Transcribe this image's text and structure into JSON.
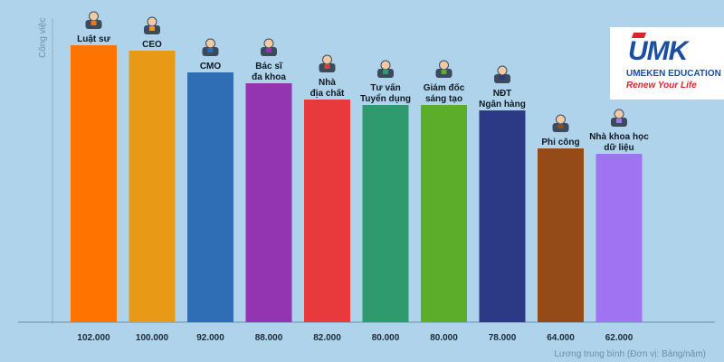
{
  "chart_data": {
    "type": "bar",
    "ylabel": "Công việc",
    "xlabel": "Lương trung bình (Đơn vị: Bảng/năm)",
    "ylim": [
      0,
      110000
    ],
    "grid": false,
    "categories": [
      [
        "Luật sư"
      ],
      [
        "CEO"
      ],
      [
        "CMO"
      ],
      [
        "Bác sĩ",
        "đa khoa"
      ],
      [
        "Nhà",
        "địa chất"
      ],
      [
        "Tư vấn",
        "Tuyển dụng"
      ],
      [
        "Giám đốc",
        "sáng tạo"
      ],
      [
        "NĐT",
        "Ngân hàng"
      ],
      [
        "Phi công"
      ],
      [
        "Nhà khoa học",
        "dữ liệu"
      ]
    ],
    "values": [
      102000,
      100000,
      92000,
      88000,
      82000,
      80000,
      80000,
      78000,
      64000,
      62000
    ],
    "value_labels": [
      "102.000",
      "100.000",
      "92.000",
      "88.000",
      "82.000",
      "80.000",
      "80.000",
      "78.000",
      "64.000",
      "62.000"
    ],
    "colors": [
      "#ff7300",
      "#e89a16",
      "#2f6db5",
      "#9334b0",
      "#e8393d",
      "#2f9a6e",
      "#5cae2a",
      "#2c3a86",
      "#954b18",
      "#a073f2"
    ],
    "icons": [
      "gavel-hand-icon",
      "businessman-icon",
      "marketing-team-icon",
      "doctor-icon",
      "geologist-icon",
      "recruitment-team-icon",
      "creative-director-icon",
      "bank-icon",
      "pilot-icon",
      "data-scientist-icon"
    ]
  },
  "logo": {
    "mark_u": "U",
    "mark_mk": "MK",
    "name": "UMEKEN EDUCATION",
    "tagline": "Renew Your Life"
  }
}
